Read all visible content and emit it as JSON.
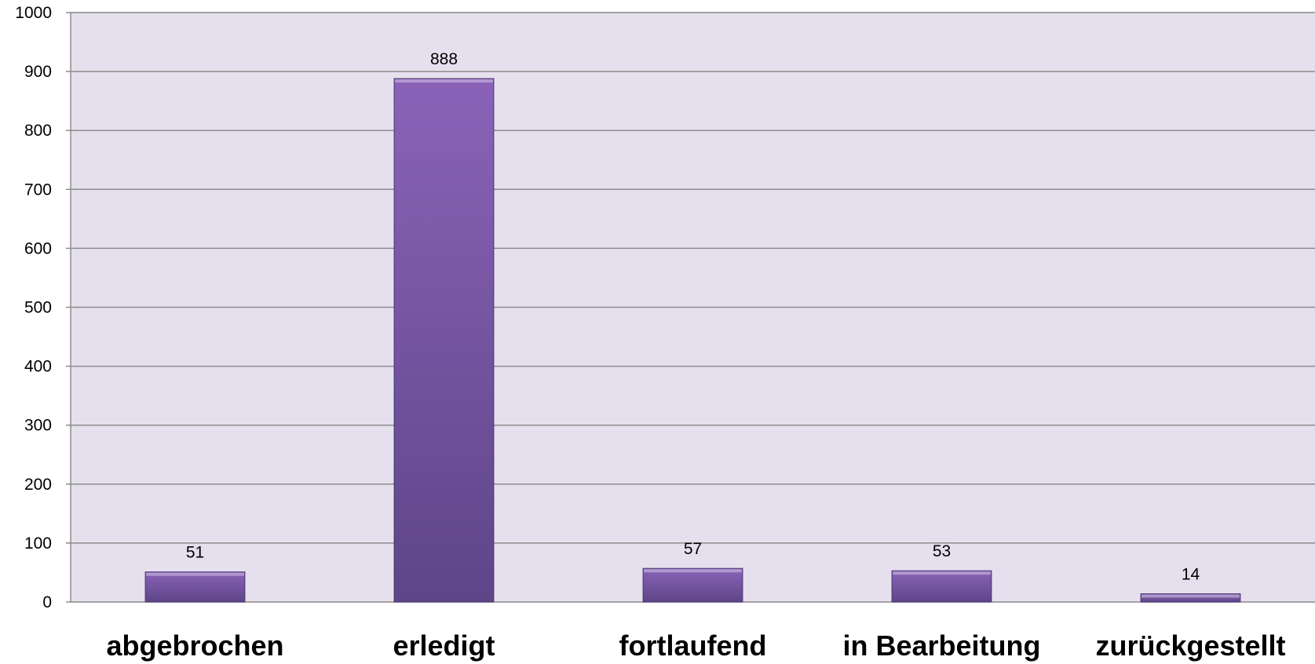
{
  "chart_data": {
    "type": "bar",
    "categories": [
      "abgebrochen",
      "erledigt",
      "fortlaufend",
      "in Bearbeitung",
      "zurückgestellt"
    ],
    "values": [
      51,
      888,
      57,
      53,
      14
    ],
    "data_labels": [
      "51",
      "888",
      "57",
      "53",
      "14"
    ],
    "title": "",
    "xlabel": "",
    "ylabel": "",
    "ylim": [
      0,
      1000
    ],
    "yticks": [
      0,
      100,
      200,
      300,
      400,
      500,
      600,
      700,
      800,
      900,
      1000
    ],
    "ytick_labels": [
      "0",
      "100",
      "200",
      "300",
      "400",
      "500",
      "600",
      "700",
      "800",
      "900",
      "1000"
    ],
    "grid": true,
    "legend": "none",
    "colors": {
      "plot_background": "#e6e0ee",
      "bar_light": "#8a63b8",
      "bar_dark": "#5e4588",
      "gridline": "#8c8c8c"
    }
  }
}
